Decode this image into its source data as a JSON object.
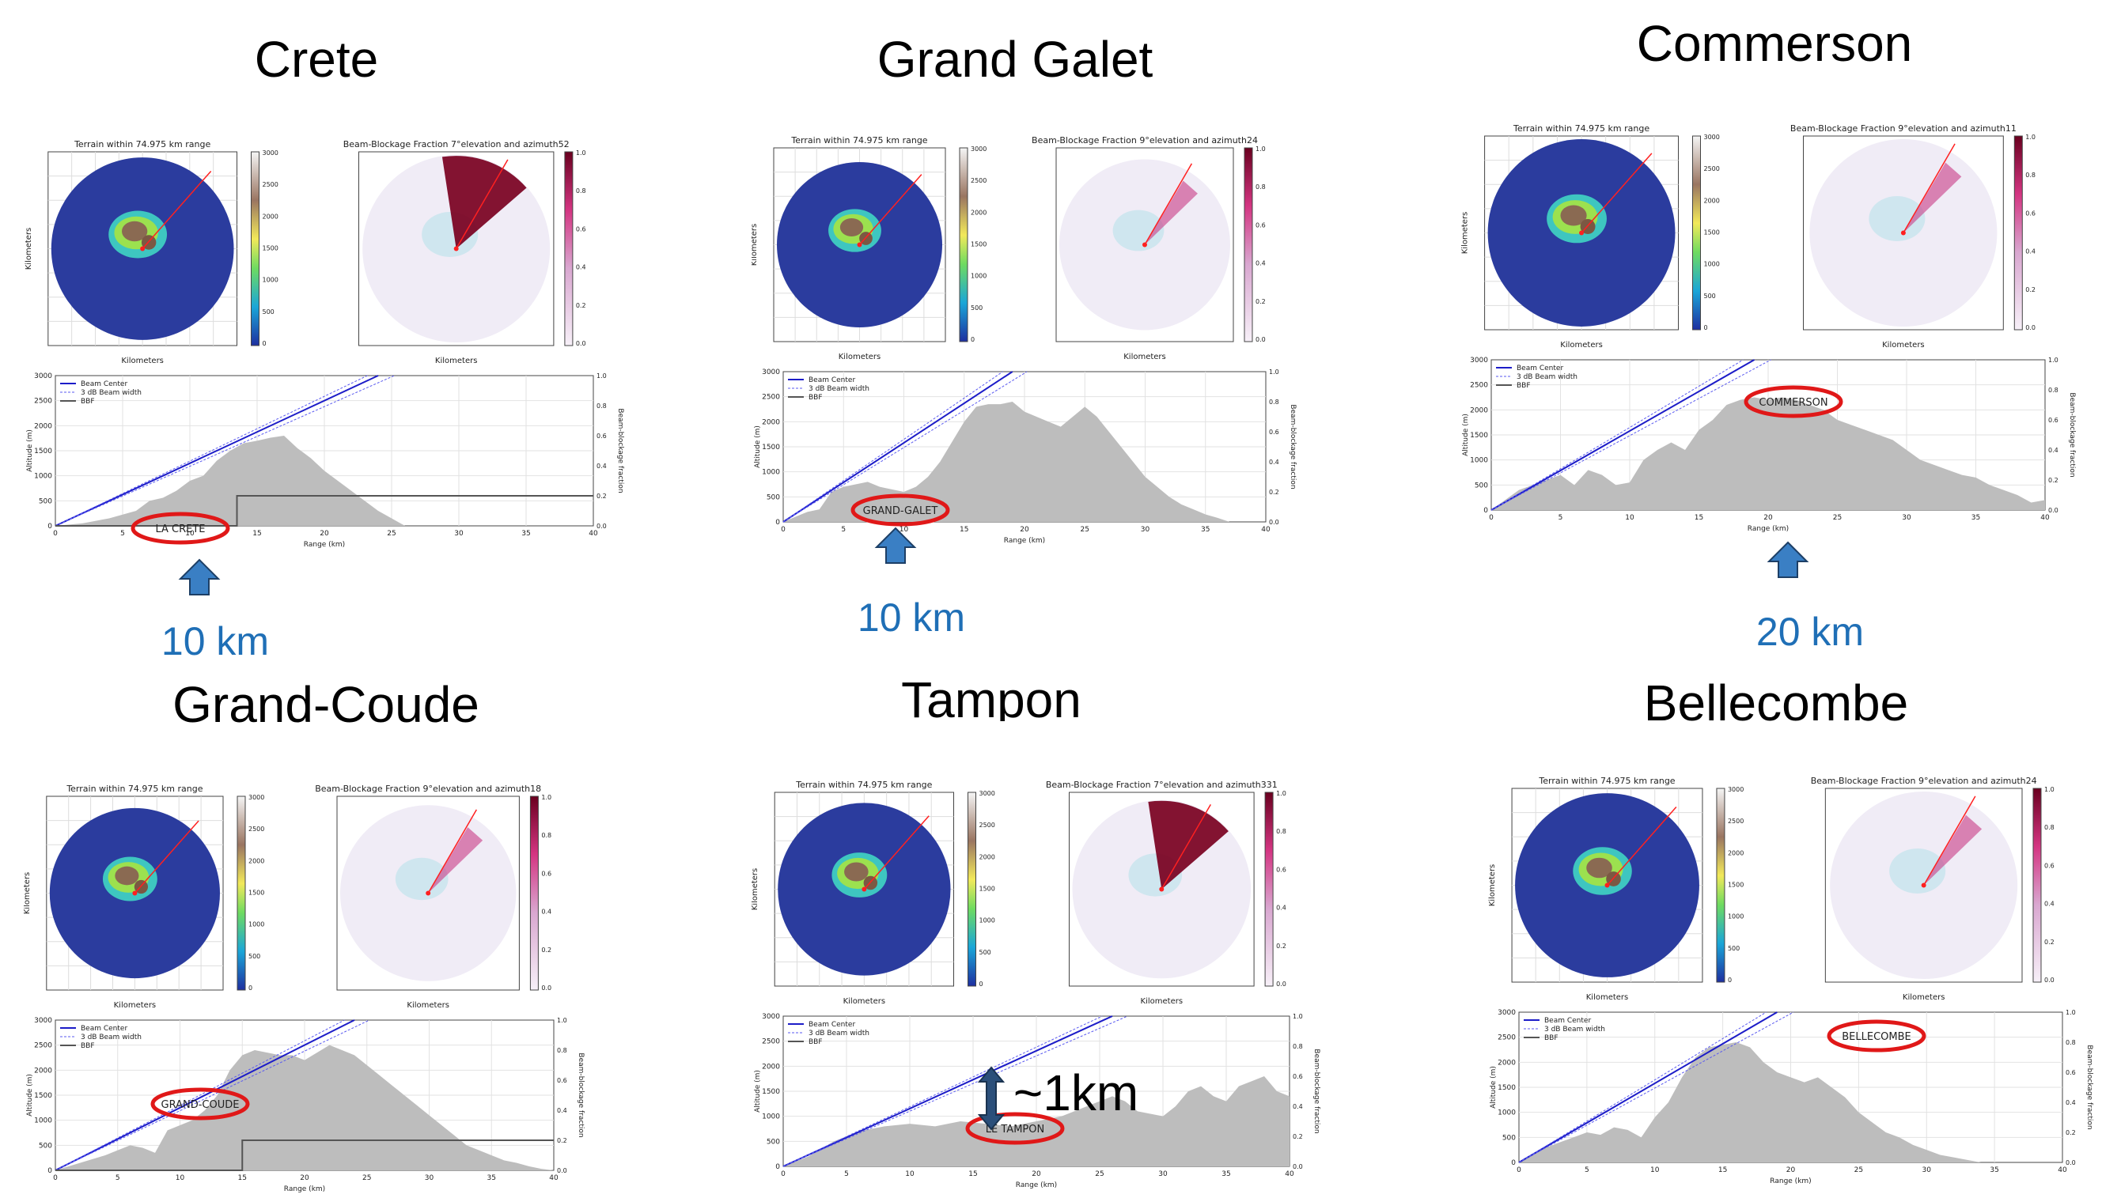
{
  "panels": [
    {
      "title": "Crete",
      "terrain_title": "Terrain within 74.975 km range",
      "bbf_title": "Beam-Blockage Fraction 7°elevation and azimuth52",
      "annotation": "LA CRETE",
      "distance_label": "10 km",
      "xlabel_map": "Kilometers",
      "ylabel_map": "Kilometers",
      "xlabel_profile": "Range (km)",
      "ylabel_profile": "Altitude (m)",
      "ylabel_bbf": "Beam-blockage fraction",
      "legend": [
        "Beam Center",
        "3 dB Beam width",
        "BBF"
      ],
      "profile_ticks_x": [
        "0",
        "5",
        "10",
        "15",
        "20",
        "25",
        "30",
        "35",
        "40"
      ],
      "profile_ticks_y": [
        "0",
        "500",
        "1000",
        "1500",
        "2000",
        "2500",
        "3000"
      ],
      "profile_ticks_bbf": [
        "0.0",
        "0.2",
        "0.4",
        "0.6",
        "0.8",
        "1.0"
      ],
      "terrain_colorbar": [
        "3000",
        "2500",
        "2000",
        "1500",
        "1000",
        "500",
        "0"
      ],
      "bbf_colorbar": [
        "1.0",
        "0.8",
        "0.6",
        "0.4",
        "0.2",
        "0.0"
      ]
    },
    {
      "title": "Grand Galet",
      "terrain_title": "Terrain within 74.975 km range",
      "bbf_title": "Beam-Blockage Fraction 9°elevation and azimuth24",
      "annotation": "GRAND-GALET",
      "distance_label": "10 km",
      "xlabel_map": "Kilometers",
      "ylabel_map": "Kilometers",
      "xlabel_profile": "Range (km)",
      "ylabel_profile": "Altitude (m)",
      "ylabel_bbf": "Beam-blockage fraction",
      "legend": [
        "Beam Center",
        "3 dB Beam width",
        "BBF"
      ],
      "profile_ticks_x": [
        "0",
        "5",
        "10",
        "15",
        "20",
        "25",
        "30",
        "35",
        "40"
      ],
      "profile_ticks_y": [
        "0",
        "500",
        "1000",
        "1500",
        "2000",
        "2500",
        "3000"
      ],
      "profile_ticks_bbf": [
        "0.0",
        "0.2",
        "0.4",
        "0.6",
        "0.8",
        "1.0"
      ],
      "terrain_colorbar": [
        "3000",
        "2500",
        "2000",
        "1500",
        "1000",
        "500",
        "0"
      ],
      "bbf_colorbar": [
        "1.0",
        "0.8",
        "0.6",
        "0.4",
        "0.2",
        "0.0"
      ]
    },
    {
      "title": "Commerson",
      "terrain_title": "Terrain within 74.975 km range",
      "bbf_title": "Beam-Blockage Fraction 9°elevation and azimuth11",
      "annotation": "COMMERSON",
      "distance_label": "20 km",
      "xlabel_map": "Kilometers",
      "ylabel_map": "Kilometers",
      "xlabel_profile": "Range (km)",
      "ylabel_profile": "Altitude (m)",
      "ylabel_bbf": "Beam-blockage fraction",
      "legend": [
        "Beam Center",
        "3 dB Beam width",
        "BBF"
      ],
      "profile_ticks_x": [
        "0",
        "5",
        "10",
        "15",
        "20",
        "25",
        "30",
        "35",
        "40"
      ],
      "profile_ticks_y": [
        "0",
        "500",
        "1000",
        "1500",
        "2000",
        "2500",
        "3000"
      ],
      "profile_ticks_bbf": [
        "0.0",
        "0.2",
        "0.4",
        "0.6",
        "0.8",
        "1.0"
      ],
      "terrain_colorbar": [
        "3000",
        "2500",
        "2000",
        "1500",
        "1000",
        "500",
        "0"
      ],
      "bbf_colorbar": [
        "1.0",
        "0.8",
        "0.6",
        "0.4",
        "0.2",
        "0.0"
      ]
    },
    {
      "title": "Grand-Coude",
      "terrain_title": "Terrain within 74.975 km range",
      "bbf_title": "Beam-Blockage Fraction 9°elevation and azimuth18",
      "annotation": "GRAND-COUDE",
      "distance_label": "",
      "xlabel_map": "Kilometers",
      "ylabel_map": "Kilometers",
      "xlabel_profile": "Range (km)",
      "ylabel_profile": "Altitude (m)",
      "ylabel_bbf": "Beam-blockage fraction",
      "legend": [
        "Beam Center",
        "3 dB Beam width",
        "BBF"
      ],
      "profile_ticks_x": [
        "0",
        "5",
        "10",
        "15",
        "20",
        "25",
        "30",
        "35",
        "40"
      ],
      "profile_ticks_y": [
        "0",
        "500",
        "1000",
        "1500",
        "2000",
        "2500",
        "3000"
      ],
      "profile_ticks_bbf": [
        "0.0",
        "0.2",
        "0.4",
        "0.6",
        "0.8",
        "1.0"
      ],
      "terrain_colorbar": [
        "3000",
        "2500",
        "2000",
        "1500",
        "1000",
        "500",
        "0"
      ],
      "bbf_colorbar": [
        "1.0",
        "0.8",
        "0.6",
        "0.4",
        "0.2",
        "0.0"
      ]
    },
    {
      "title": "Tampon",
      "terrain_title": "Terrain within 74.975 km range",
      "bbf_title": "Beam-Blockage Fraction 7°elevation and azimuth331",
      "annotation": "LE TAMPON",
      "distance_label": "~1km",
      "xlabel_map": "Kilometers",
      "ylabel_map": "Kilometers",
      "xlabel_profile": "Range (km)",
      "ylabel_profile": "Altitude (m)",
      "ylabel_bbf": "Beam-blockage fraction",
      "legend": [
        "Beam Center",
        "3 dB Beam width",
        "BBF"
      ],
      "profile_ticks_x": [
        "0",
        "5",
        "10",
        "15",
        "20",
        "25",
        "30",
        "35",
        "40"
      ],
      "profile_ticks_y": [
        "0",
        "500",
        "1000",
        "1500",
        "2000",
        "2500",
        "3000"
      ],
      "profile_ticks_bbf": [
        "0.0",
        "0.2",
        "0.4",
        "0.6",
        "0.8",
        "1.0"
      ],
      "terrain_colorbar": [
        "3000",
        "2500",
        "2000",
        "1500",
        "1000",
        "500",
        "0"
      ],
      "bbf_colorbar": [
        "1.0",
        "0.8",
        "0.6",
        "0.4",
        "0.2",
        "0.0"
      ]
    },
    {
      "title": "Bellecombe",
      "terrain_title": "Terrain within 74.975 km range",
      "bbf_title": "Beam-Blockage Fraction 9°elevation and azimuth24",
      "annotation": "BELLECOMBE",
      "distance_label": "",
      "xlabel_map": "Kilometers",
      "ylabel_map": "Kilometers",
      "xlabel_profile": "Range (km)",
      "ylabel_profile": "Altitude (m)",
      "ylabel_bbf": "Beam-blockage fraction",
      "legend": [
        "Beam Center",
        "3 dB Beam width",
        "BBF"
      ],
      "profile_ticks_x": [
        "0",
        "5",
        "10",
        "15",
        "20",
        "25",
        "30",
        "35",
        "40"
      ],
      "profile_ticks_y": [
        "0",
        "500",
        "1000",
        "1500",
        "2000",
        "2500",
        "3000"
      ],
      "profile_ticks_bbf": [
        "0.0",
        "0.2",
        "0.4",
        "0.6",
        "0.8",
        "1.0"
      ],
      "terrain_colorbar": [
        "3000",
        "2500",
        "2000",
        "1500",
        "1000",
        "500",
        "0"
      ],
      "bbf_colorbar": [
        "1.0",
        "0.8",
        "0.6",
        "0.4",
        "0.2",
        "0.0"
      ]
    }
  ],
  "colors": {
    "beam_center": "#1c1cc8",
    "beam_width": "#5a5af0",
    "terrain_fill": "#bdbdbd",
    "annotation_ring": "#e01818",
    "arrow": "#3a7fc4",
    "distance_text": "#1f6fb6",
    "bbf_dark": "#7a0020",
    "map_ocean": "#2b3c9e"
  }
}
